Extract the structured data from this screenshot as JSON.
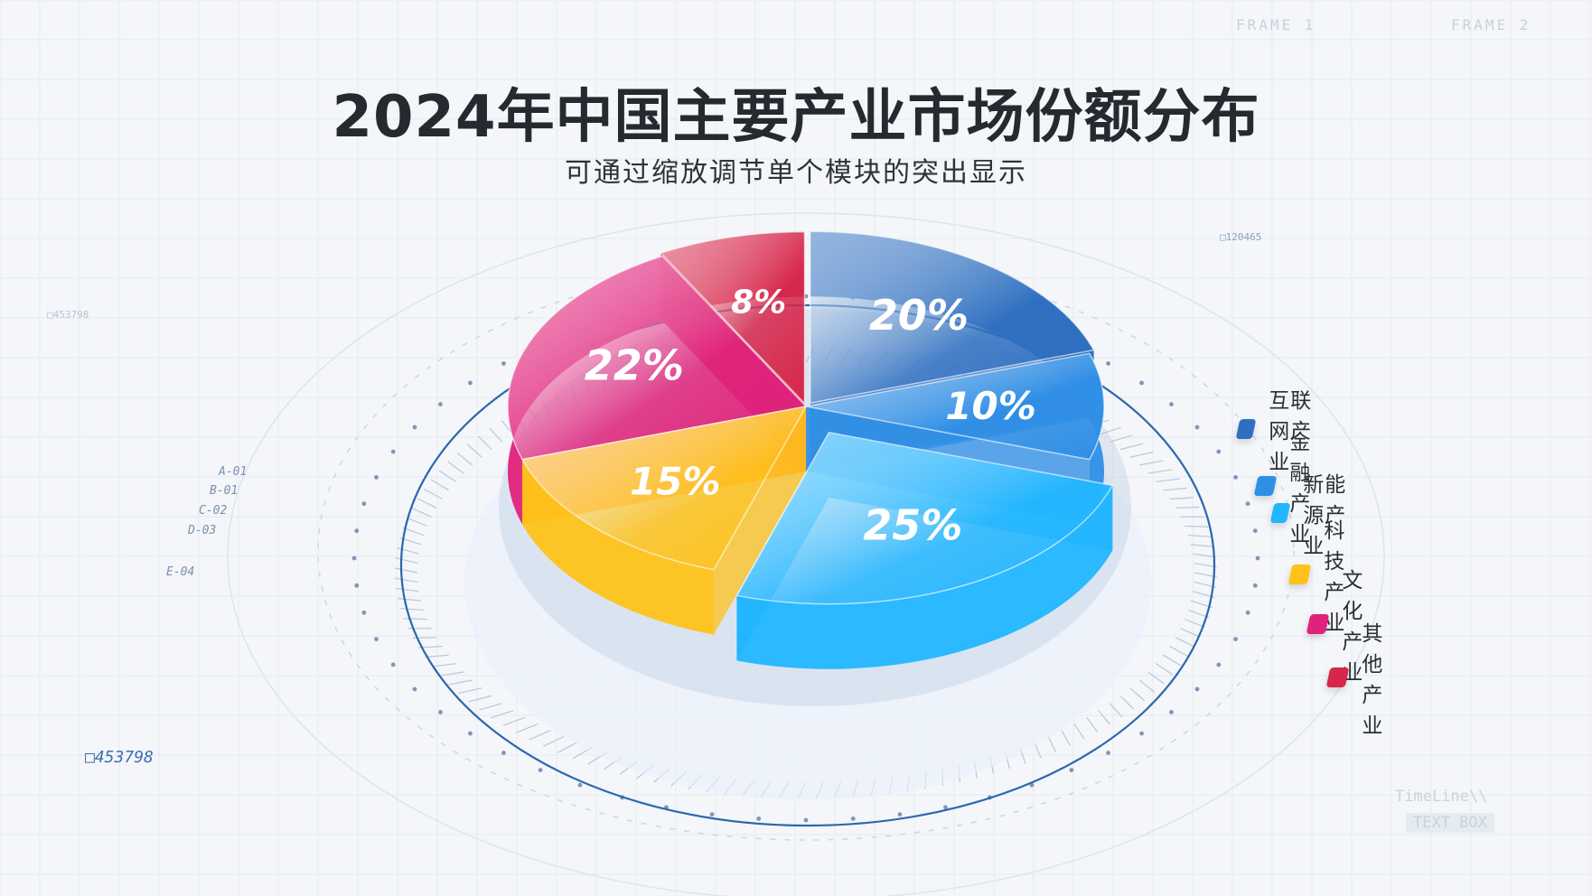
{
  "chart_data": {
    "type": "pie",
    "title": "2024年中国主要产业市场份额分布",
    "subtitle": "可通过缩放调节单个模块的突出显示",
    "slices": [
      {
        "name": "互联网产业",
        "value": 20,
        "label": "20%",
        "color": "#2e6fc0"
      },
      {
        "name": "金融产业",
        "value": 10,
        "label": "10%",
        "color": "#2f8fe6"
      },
      {
        "name": "新能源产业",
        "value": 25,
        "label": "25%",
        "color": "#22b6ff"
      },
      {
        "name": "科技产业",
        "value": 15,
        "label": "15%",
        "color": "#ffc21a"
      },
      {
        "name": "文化产业",
        "value": 22,
        "label": "22%",
        "color": "#e0227a"
      },
      {
        "name": "其他产业",
        "value": 8,
        "label": "8%",
        "color": "#d6264a"
      }
    ],
    "legend_position": "right"
  },
  "decor": {
    "codes_left": [
      "A-01",
      "B-01",
      "C-02",
      "D-03",
      "E-04"
    ],
    "id_bottom_left": "453798",
    "id_top_left": "453798",
    "id_top_right": "120465",
    "frames": [
      "FRAME 1",
      "FRAME 2"
    ],
    "timeline": "TimeLine\\\\",
    "textbox": "TEXT BOX"
  }
}
